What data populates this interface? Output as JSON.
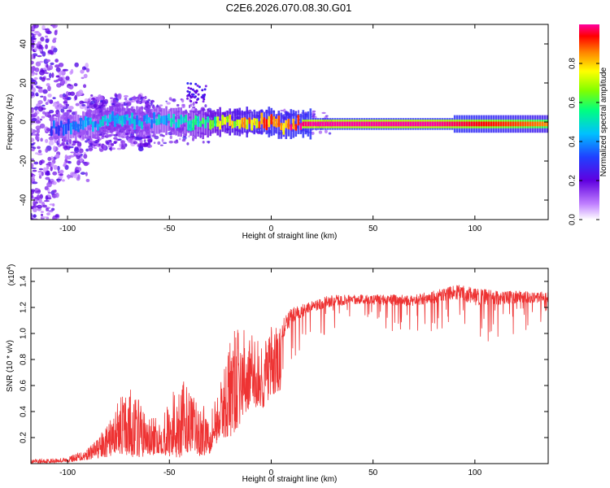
{
  "title": "C2E6.2026.070.08.30.G01",
  "colorbar": {
    "label": "Normalized spectral amplitude",
    "ticks": [
      "0.0",
      "0.2",
      "0.4",
      "0.6",
      "0.8"
    ],
    "tick_values": [
      0.0,
      0.2,
      0.4,
      0.6,
      0.8
    ],
    "range": [
      0,
      1
    ],
    "colors": [
      "#ffffff",
      "#c080ff",
      "#6000e0",
      "#2040ff",
      "#00c0ff",
      "#00ff80",
      "#80ff00",
      "#ffff00",
      "#ff8000",
      "#ff0000",
      "#ff00a0"
    ]
  },
  "chart_data": [
    {
      "type": "heatmap",
      "xlabel": "Height of straight line (km)",
      "ylabel": "Frequency (Hz)",
      "xlim": [
        -118,
        136
      ],
      "ylim": [
        -50,
        50
      ],
      "xticks": [
        -100,
        -50,
        0,
        50,
        100
      ],
      "yticks": [
        -40,
        -20,
        0,
        20,
        40
      ],
      "xtick_labels": [
        "-100",
        "-50",
        "0",
        "50",
        "100"
      ],
      "ytick_labels": [
        "-40",
        "-20",
        "0",
        "20",
        "40"
      ],
      "ridge": {
        "x": [
          -105,
          -95,
          -85,
          -75,
          -65,
          -55,
          -45,
          -35,
          -25,
          -15,
          -5,
          0,
          5,
          10,
          20,
          40,
          60,
          80,
          100,
          120,
          136
        ],
        "frequency": [
          -3,
          -2,
          -1,
          3,
          0,
          1,
          0,
          -1,
          0,
          0,
          0,
          0,
          -2,
          -1,
          -1,
          -1,
          -1,
          -1,
          -1,
          -1,
          -1
        ],
        "amplitude": [
          0.35,
          0.4,
          0.45,
          0.5,
          0.45,
          0.45,
          0.5,
          0.55,
          0.7,
          0.8,
          0.9,
          0.95,
          0.9,
          0.95,
          1.0,
          1.0,
          1.0,
          1.0,
          0.95,
          0.9,
          0.85
        ]
      }
    },
    {
      "type": "line",
      "xlabel": "Height of straight line (km)",
      "ylabel": "SNR (10 * v/v)",
      "y_multiplier_label": "(x10",
      "y_multiplier_exp": "4",
      "y_multiplier_close": ")",
      "xlim": [
        -118,
        136
      ],
      "ylim": [
        0,
        1.5
      ],
      "xticks": [
        -100,
        -50,
        0,
        50,
        100
      ],
      "yticks": [
        0.2,
        0.4,
        0.6,
        0.8,
        1.0,
        1.2,
        1.4
      ],
      "xtick_labels": [
        "-100",
        "-50",
        "0",
        "50",
        "100"
      ],
      "ytick_labels": [
        "0.2",
        "0.4",
        "0.6",
        "0.8",
        "1.0",
        "1.2",
        "1.4"
      ],
      "color": "#ee3333",
      "envelope_x": [
        -118,
        -100,
        -90,
        -80,
        -75,
        -70,
        -65,
        -60,
        -55,
        -50,
        -45,
        -40,
        -35,
        -30,
        -25,
        -20,
        -15,
        -10,
        -5,
        0,
        5,
        10,
        20,
        30,
        40,
        50,
        60,
        70,
        80,
        90,
        100,
        110,
        120,
        136
      ],
      "envelope_top": [
        0.03,
        0.05,
        0.12,
        0.3,
        0.5,
        0.6,
        0.5,
        0.35,
        0.35,
        0.5,
        0.7,
        0.55,
        0.45,
        0.45,
        0.6,
        1.0,
        1.05,
        1.0,
        0.95,
        1.05,
        1.1,
        1.2,
        1.25,
        1.3,
        1.3,
        1.3,
        1.3,
        1.3,
        1.33,
        1.38,
        1.35,
        1.33,
        1.33,
        1.32
      ],
      "envelope_bottom": [
        0.0,
        0.01,
        0.03,
        0.05,
        0.08,
        0.05,
        0.05,
        0.05,
        0.08,
        0.05,
        0.04,
        0.1,
        0.05,
        0.08,
        0.2,
        0.2,
        0.3,
        0.45,
        0.4,
        0.5,
        0.55,
        0.8,
        0.95,
        1.0,
        1.05,
        1.05,
        1.0,
        1.0,
        1.0,
        1.0,
        0.9,
        0.95,
        1.0,
        1.05
      ]
    }
  ]
}
